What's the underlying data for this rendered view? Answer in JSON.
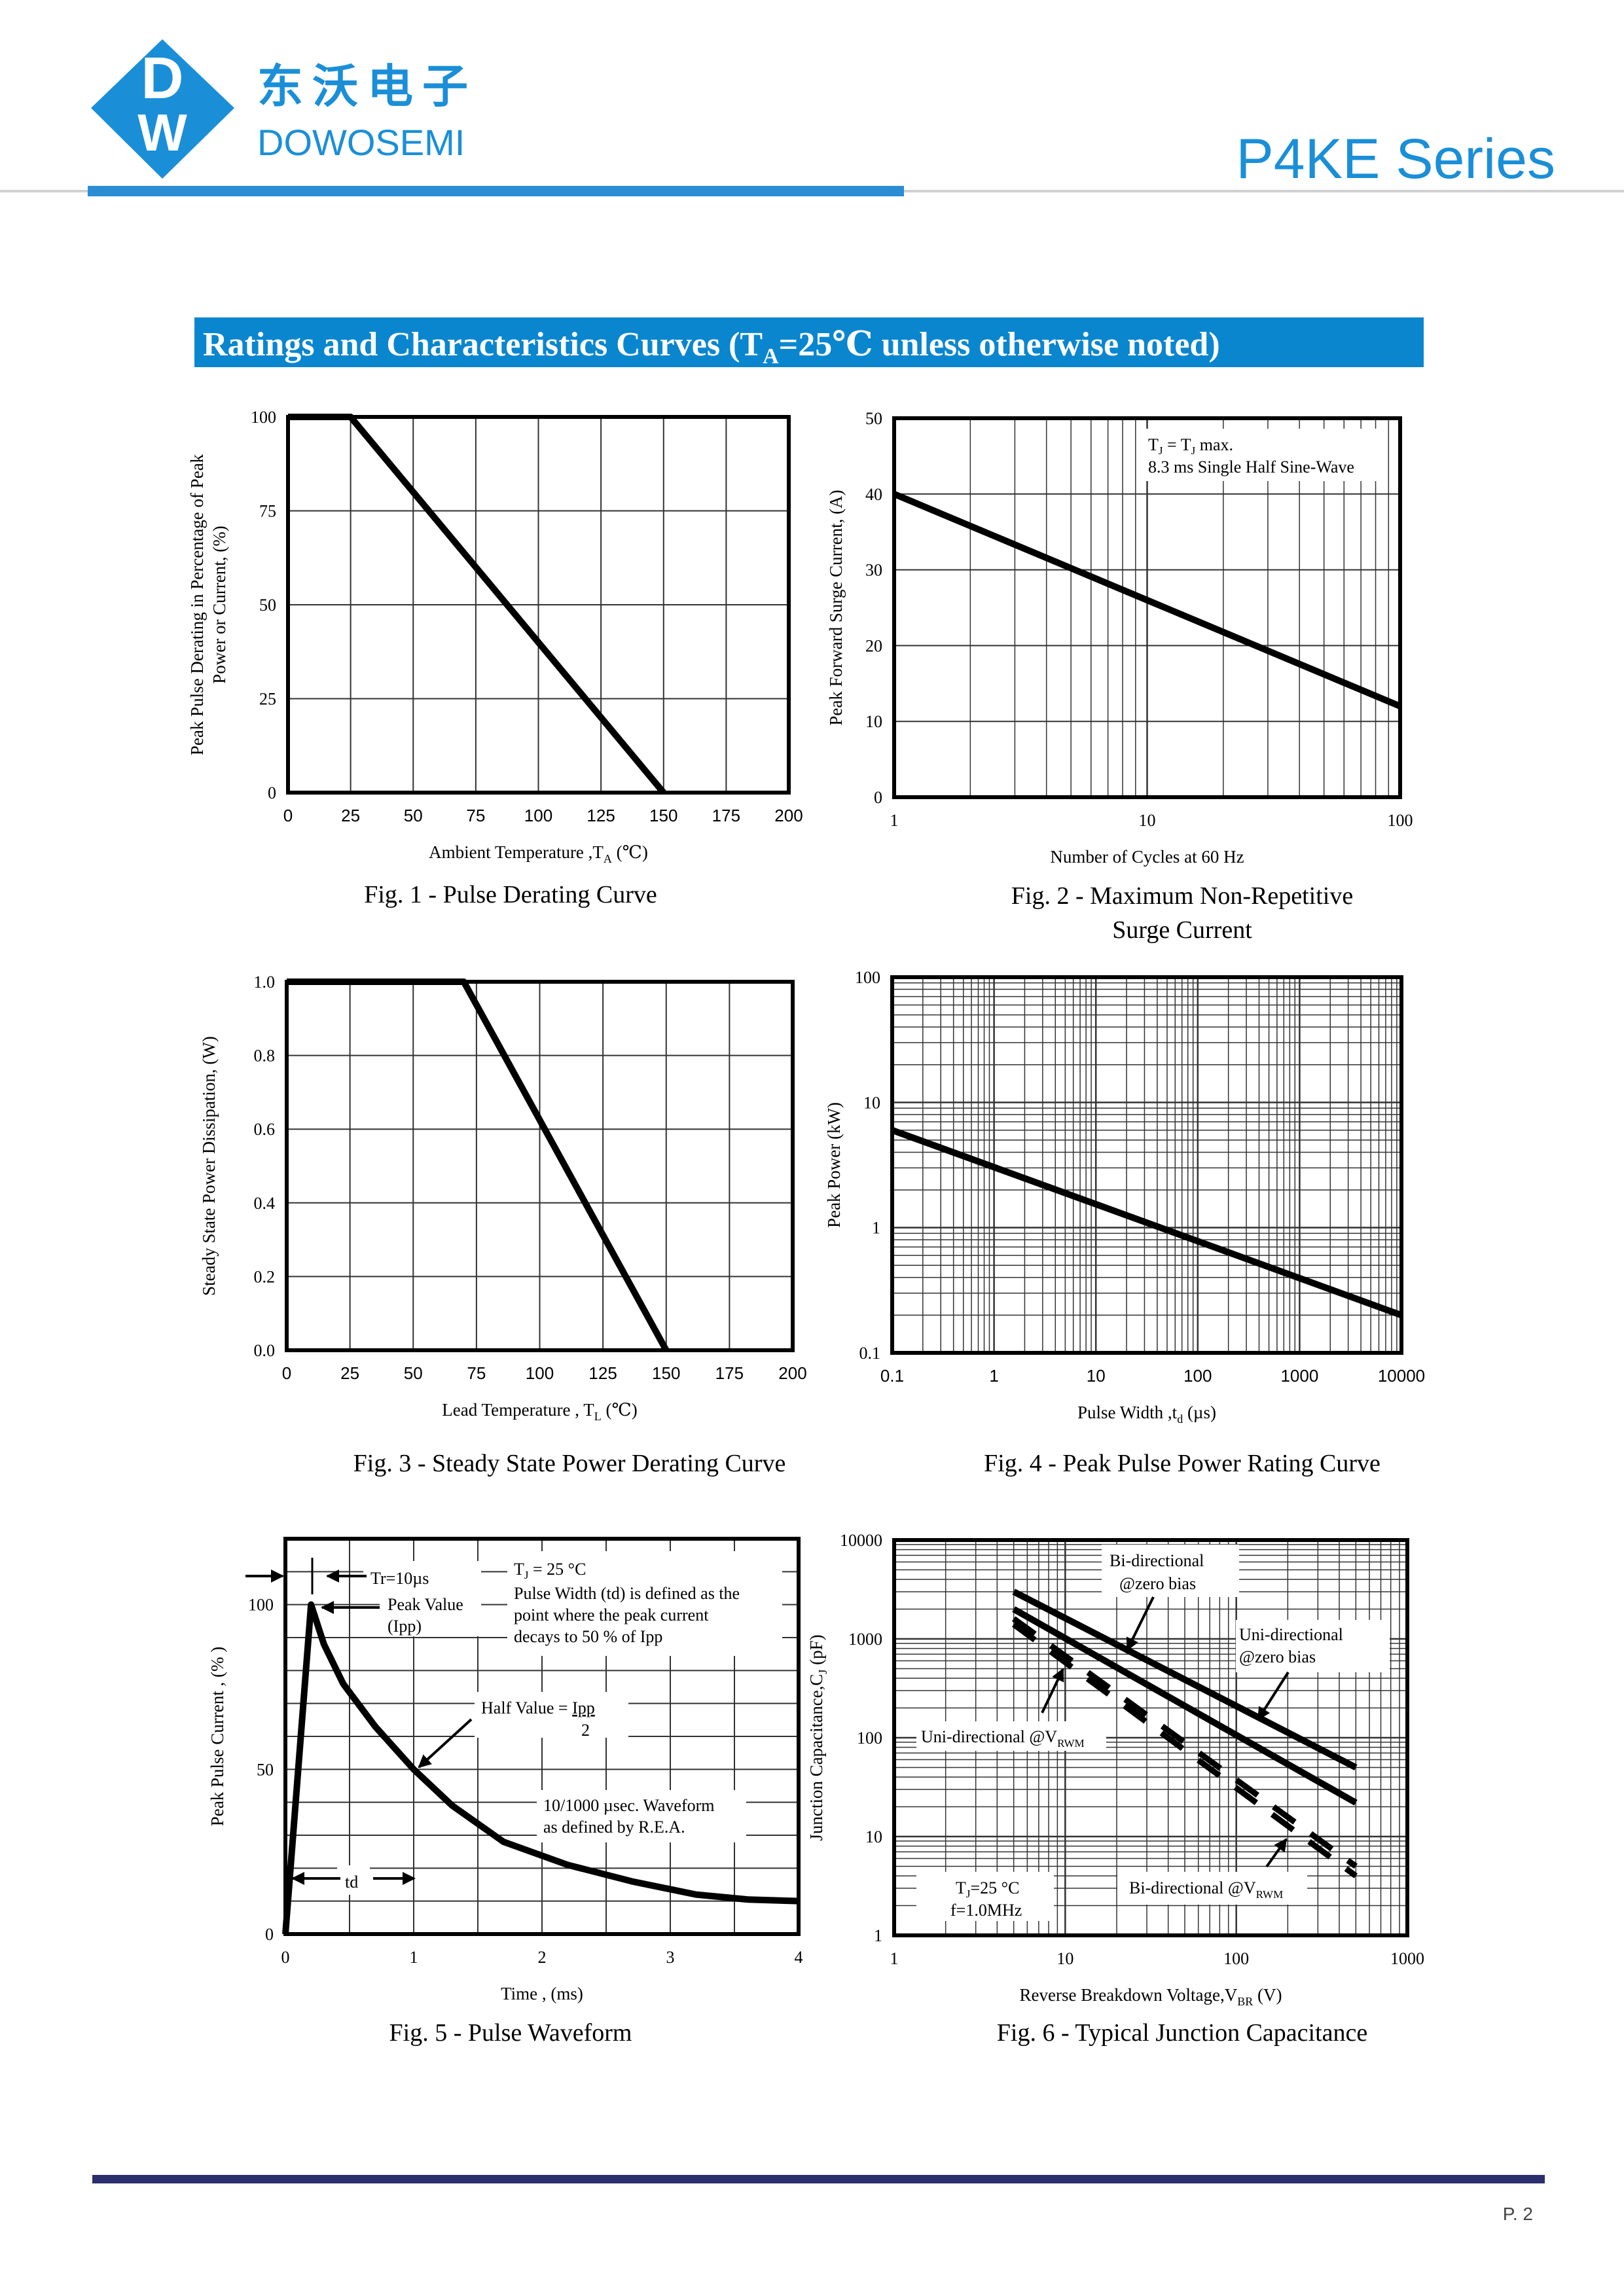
{
  "header": {
    "logo_cn": "东沃电子",
    "logo_en": "DOWOSEMI",
    "series": "P4KE Series",
    "brand_color": "#1a8fd8",
    "bar_color": "#2b8dd4"
  },
  "banner": {
    "title_pre": "Ratings and Characteristics Curves (T",
    "title_sub": "A",
    "title_post": "=25℃ unless otherwise noted)",
    "color": "#0a86cf"
  },
  "footer": {
    "page": "P. 2",
    "bar_color": "#2b2f6b"
  },
  "chart_data": [
    {
      "type": "line",
      "caption": "Fig. 1 - Pulse Derating Curve",
      "xlabel": "Ambient Temperature ,T",
      "xlabel_sub": "A",
      "xlabel_unit": " (℃)",
      "ylabel": [
        "Peak Pulse Derating in Percentage of  Peak",
        "Power or Current, (%)"
      ],
      "xscale": "linear",
      "yscale": "linear",
      "xlim": [
        0,
        200
      ],
      "ylim": [
        0,
        100
      ],
      "xticks": [
        0,
        25,
        50,
        75,
        100,
        125,
        150,
        175,
        200
      ],
      "yticks": [
        0,
        25,
        50,
        75,
        100
      ],
      "xgrid": [
        25,
        50,
        75,
        100,
        125,
        150,
        175
      ],
      "ygrid": [
        25,
        50,
        75
      ],
      "series": [
        {
          "name": "derating",
          "x": [
            0,
            25,
            150
          ],
          "y": [
            100,
            100,
            0
          ],
          "style": "solid"
        }
      ]
    },
    {
      "type": "line",
      "caption": [
        "Fig. 2 - Maximum Non-Repetitive",
        "Surge Current"
      ],
      "xlabel": "Number of Cycles at 60 Hz",
      "ylabel": [
        "Peak Forward Surge Current, (A)"
      ],
      "xscale": "log",
      "yscale": "linear",
      "xlim": [
        1,
        100
      ],
      "ylim": [
        0,
        50
      ],
      "xticks": [
        1,
        10,
        100
      ],
      "yticks": [
        0,
        10,
        20,
        30,
        40,
        50
      ],
      "ygrid": [
        10,
        20,
        30,
        40
      ],
      "annotations": [
        "Tⱼ = Tⱼ max.",
        "8.3 ms Single Half Sine-Wave"
      ],
      "annot1_main": "T",
      "annot1_sub": "J",
      "annot1_mid": " = T",
      "annot1_end": " max.",
      "series": [
        {
          "name": "surge",
          "x": [
            1,
            100
          ],
          "y": [
            40,
            12
          ],
          "style": "solid"
        }
      ]
    },
    {
      "type": "line",
      "caption": "Fig. 3 - Steady State Power Derating Curve",
      "xlabel": "Lead Temperature , T",
      "xlabel_sub": "L",
      "xlabel_unit": " (℃)",
      "ylabel": [
        "Steady State Power Dissipation, (W)"
      ],
      "xscale": "linear",
      "yscale": "linear",
      "xlim": [
        0,
        200
      ],
      "ylim": [
        0,
        1.0
      ],
      "xticks": [
        0,
        25,
        50,
        75,
        100,
        125,
        150,
        175,
        200
      ],
      "yticks": [
        "0.0",
        "0.2",
        "0.4",
        "0.6",
        "0.8",
        "1.0"
      ],
      "xgrid": [
        25,
        50,
        75,
        100,
        125,
        150,
        175
      ],
      "ygrid": [
        0.2,
        0.4,
        0.6,
        0.8
      ],
      "series": [
        {
          "name": "power",
          "x": [
            0,
            70,
            150
          ],
          "y": [
            1,
            1,
            0
          ],
          "style": "solid"
        }
      ]
    },
    {
      "type": "line",
      "caption": "Fig. 4 - Peak Pulse Power Rating Curve",
      "xlabel": "Pulse Width ,t",
      "xlabel_sub": "d",
      "xlabel_unit": "  (µs)",
      "ylabel": [
        "Peak Power  (kW)"
      ],
      "xscale": "log",
      "yscale": "log",
      "xlim": [
        0.1,
        10000
      ],
      "ylim": [
        0.1,
        100
      ],
      "xticks": [
        "0.1",
        "1",
        "10",
        "100",
        "1000",
        "10000"
      ],
      "yticks": [
        "0.1",
        "1",
        "10",
        "100"
      ],
      "series": [
        {
          "name": "peak-power",
          "x": [
            0.1,
            10000
          ],
          "y": [
            6,
            0.2
          ],
          "style": "solid"
        }
      ]
    },
    {
      "type": "line",
      "caption": "Fig. 5 - Pulse Waveform",
      "xlabel": "Time , (ms)",
      "ylabel": [
        "Peak Pulse Current , (% )"
      ],
      "xscale": "linear",
      "yscale": "linear",
      "xlim": [
        0,
        4
      ],
      "ylim": [
        0,
        120
      ],
      "xticks": [
        0,
        1,
        2,
        3,
        4
      ],
      "yticks": [
        0,
        50,
        100
      ],
      "xgrid": [
        0.5,
        1,
        1.5,
        2,
        2.5,
        3,
        3.5
      ],
      "ygrid": [
        10,
        20,
        30,
        40,
        50,
        60,
        70,
        80,
        90,
        100,
        110
      ],
      "annotations": {
        "tr": "Tr=10µs",
        "peak1": "Peak Value",
        "peak2": "(Ipp)",
        "tj_main": "T",
        "tj_sub": "J",
        "tj_rest": " = 25 °C",
        "pw1": "Pulse Width (td) is defined as the",
        "pw2": "point where the peak current",
        "pw3": "decays to 50 % of Ipp",
        "half": "Half Value = ",
        "half_num": "Ipp",
        "half_den": "2",
        "wave1": "10/1000 µsec. Waveform",
        "wave2": "as defined by R.E.A.",
        "td": "td"
      },
      "series": [
        {
          "name": "waveform",
          "x": [
            0,
            0.2,
            0.3,
            0.45,
            0.7,
            1.0,
            1.3,
            1.7,
            2.2,
            2.7,
            3.2,
            3.6,
            4.0
          ],
          "y": [
            0,
            100,
            88,
            76,
            63,
            50,
            39,
            28,
            21,
            16,
            12,
            10.5,
            10
          ],
          "style": "solid"
        }
      ]
    },
    {
      "type": "line",
      "caption": "Fig. 6 - Typical Junction Capacitance",
      "xlabel": "Reverse  Breakdown Voltage,V",
      "xlabel_sub": "BR",
      "xlabel_unit": "  (V)",
      "ylabel": [
        "Junction Capacitance,C",
        "J",
        "  (pF)"
      ],
      "xscale": "log",
      "yscale": "log",
      "xlim": [
        1,
        1000
      ],
      "ylim": [
        1,
        10000
      ],
      "xticks": [
        1,
        10,
        100,
        1000
      ],
      "yticks": [
        1,
        10,
        100,
        1000,
        10000
      ],
      "annotations": {
        "bi_zero1": "Bi-directional",
        "bi_zero2": "@zero bias",
        "uni_zero1": "Uni-directional",
        "uni_zero2": "@zero bias",
        "uni_v": "Uni-directional @V",
        "bi_v": "Bi-directional @V",
        "rwm": "RWM",
        "tj_main": "T",
        "tj_sub": "J",
        "tj_rest": "=25 °C",
        "freq": "f=1.0MHz"
      },
      "series": [
        {
          "name": "Bi-directional @zero bias",
          "x": [
            5,
            500
          ],
          "y": [
            3000,
            50
          ],
          "style": "solid"
        },
        {
          "name": "Uni-directional @zero bias",
          "x": [
            5,
            500
          ],
          "y": [
            2000,
            22
          ],
          "style": "solid"
        },
        {
          "name": "Uni-directional @VRWM",
          "x": [
            5,
            500
          ],
          "y": [
            1600,
            5
          ],
          "style": "dashed"
        },
        {
          "name": "Bi-directional @VRWM",
          "x": [
            5,
            500
          ],
          "y": [
            1400,
            4
          ],
          "style": "dashed"
        }
      ]
    }
  ]
}
